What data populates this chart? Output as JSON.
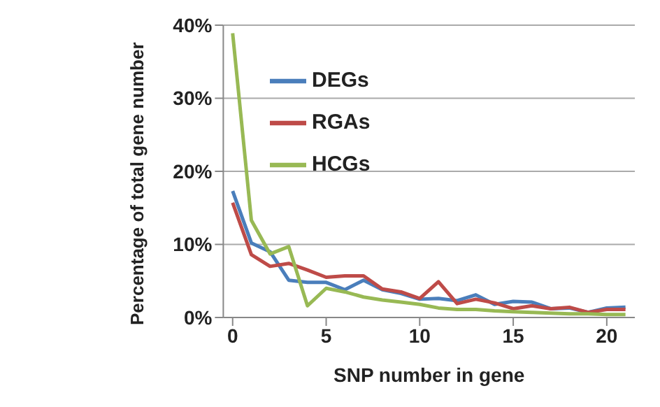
{
  "chart_data": {
    "type": "line",
    "xlabel": "SNP number in gene",
    "ylabel": "Percentage of total gene number",
    "x": [
      0,
      1,
      2,
      3,
      4,
      5,
      6,
      7,
      8,
      9,
      10,
      11,
      12,
      13,
      14,
      15,
      16,
      17,
      18,
      19,
      20,
      21
    ],
    "series": [
      {
        "name": "DEGs",
        "color": "#4a7ebb",
        "values": [
          17.3,
          10.2,
          9.0,
          5.1,
          4.8,
          4.8,
          3.8,
          5.1,
          3.8,
          3.3,
          2.5,
          2.6,
          2.3,
          3.1,
          1.8,
          2.2,
          2.1,
          1.2,
          1.3,
          0.7,
          1.3,
          1.4
        ]
      },
      {
        "name": "RGAs",
        "color": "#be4b48",
        "values": [
          15.7,
          8.6,
          7.0,
          7.4,
          6.5,
          5.5,
          5.7,
          5.7,
          3.9,
          3.5,
          2.6,
          4.9,
          1.9,
          2.5,
          2.0,
          1.2,
          1.6,
          1.2,
          1.4,
          0.7,
          1.1,
          1.1
        ]
      },
      {
        "name": "HCGs",
        "color": "#98b954",
        "values": [
          38.9,
          13.3,
          8.7,
          9.7,
          1.6,
          4.0,
          3.5,
          2.8,
          2.4,
          2.1,
          1.8,
          1.3,
          1.1,
          1.1,
          0.9,
          0.8,
          0.7,
          0.6,
          0.5,
          0.5,
          0.4,
          0.4
        ]
      }
    ],
    "xlim": [
      -0.5,
      21.5
    ],
    "xticks": [
      0,
      5,
      10,
      15,
      20
    ],
    "ylim": [
      0,
      40
    ],
    "yticks": [
      {
        "value": 0,
        "label": "0%"
      },
      {
        "value": 10,
        "label": "10%"
      },
      {
        "value": 20,
        "label": "20%"
      },
      {
        "value": 30,
        "label": "30%"
      },
      {
        "value": 40,
        "label": "40%"
      }
    ],
    "grid": "y",
    "legend": "top",
    "marker": "none",
    "line_style": "solid"
  }
}
